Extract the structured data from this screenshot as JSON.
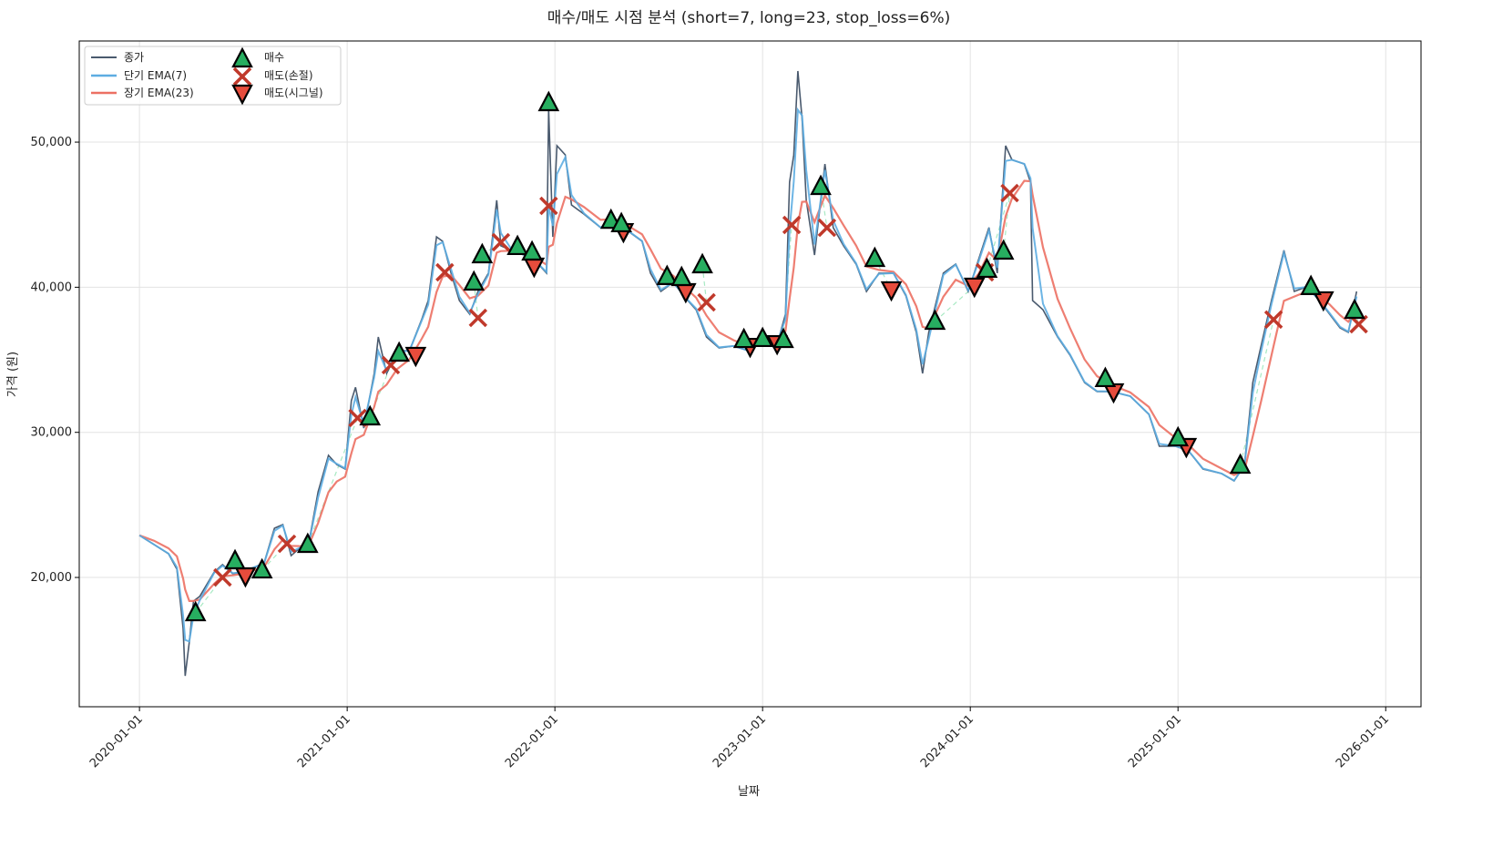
{
  "chart_data": {
    "type": "line",
    "title": "매수/매도 시점 분석 (short=7, long=23, stop_loss=6%)",
    "xlabel": "날짜",
    "ylabel": "가격 (원)",
    "params": {
      "short": 7,
      "long": 23,
      "stop_loss_pct": 6
    },
    "xlim": [
      2019.71,
      2026.17
    ],
    "ylim": [
      11090,
      56970
    ],
    "grid": true,
    "legend_placement": "top-left",
    "x_ticks": [
      {
        "value": 2020,
        "label": "2020-01-01"
      },
      {
        "value": 2021,
        "label": "2021-01-01"
      },
      {
        "value": 2022,
        "label": "2022-01-01"
      },
      {
        "value": 2023,
        "label": "2023-01-01"
      },
      {
        "value": 2024,
        "label": "2024-01-01"
      },
      {
        "value": 2025,
        "label": "2025-01-01"
      },
      {
        "value": 2026,
        "label": "2026-01-01"
      }
    ],
    "y_ticks": [
      {
        "value": 20000,
        "label": "20,000"
      },
      {
        "value": 30000,
        "label": "30,000"
      },
      {
        "value": 40000,
        "label": "40,000"
      },
      {
        "value": 50000,
        "label": "50,000"
      }
    ],
    "legend": {
      "close": "종가",
      "short_ema": "단기 EMA(7)",
      "long_ema": "장기 EMA(23)",
      "buy": "매수",
      "sell_stop": "매도(손절)",
      "sell_signal": "매도(시그널)"
    },
    "colors": {
      "close": "#4a5a6e",
      "short_ema": "#5dade2",
      "long_ema": "#ec7063",
      "buy": "#27ae60",
      "sell_stop": "#c0392b",
      "sell_signal": "#e74c3c",
      "trade_line": "#82e0aa"
    },
    "close": [
      [
        2020.0,
        22900
      ],
      [
        2020.07,
        22260
      ],
      [
        2020.14,
        21630
      ],
      [
        2020.18,
        20570
      ],
      [
        2020.21,
        16500
      ],
      [
        2020.22,
        13220
      ],
      [
        2020.24,
        15540
      ],
      [
        2020.26,
        18370
      ],
      [
        2020.29,
        18700
      ],
      [
        2020.36,
        20380
      ],
      [
        2020.4,
        20880
      ],
      [
        2020.45,
        20250
      ],
      [
        2020.49,
        20380
      ],
      [
        2020.56,
        20750
      ],
      [
        2020.6,
        21000
      ],
      [
        2020.65,
        23390
      ],
      [
        2020.69,
        23640
      ],
      [
        2020.73,
        21500
      ],
      [
        2020.78,
        22130
      ],
      [
        2020.82,
        22760
      ],
      [
        2020.86,
        25900
      ],
      [
        2020.91,
        28410
      ],
      [
        2020.95,
        27780
      ],
      [
        2020.99,
        27470
      ],
      [
        2021.02,
        32180
      ],
      [
        2021.04,
        33100
      ],
      [
        2021.08,
        30290
      ],
      [
        2021.13,
        34060
      ],
      [
        2021.15,
        36570
      ],
      [
        2021.19,
        34060
      ],
      [
        2021.24,
        35630
      ],
      [
        2021.3,
        35630
      ],
      [
        2021.36,
        37830
      ],
      [
        2021.39,
        39080
      ],
      [
        2021.43,
        43470
      ],
      [
        2021.46,
        43160
      ],
      [
        2021.5,
        40970
      ],
      [
        2021.54,
        39080
      ],
      [
        2021.59,
        38140
      ],
      [
        2021.63,
        39710
      ],
      [
        2021.68,
        40970
      ],
      [
        2021.72,
        45990
      ],
      [
        2021.74,
        42850
      ],
      [
        2021.79,
        42540
      ],
      [
        2021.85,
        42220
      ],
      [
        2021.92,
        41590
      ],
      [
        2021.96,
        40970
      ],
      [
        2021.97,
        52260
      ],
      [
        2021.99,
        43470
      ],
      [
        2022.01,
        49750
      ],
      [
        2022.05,
        49120
      ],
      [
        2022.08,
        45670
      ],
      [
        2022.14,
        45040
      ],
      [
        2022.22,
        44110
      ],
      [
        2022.29,
        44730
      ],
      [
        2022.36,
        43790
      ],
      [
        2022.42,
        43160
      ],
      [
        2022.46,
        40970
      ],
      [
        2022.51,
        39710
      ],
      [
        2022.57,
        40340
      ],
      [
        2022.64,
        39080
      ],
      [
        2022.68,
        38450
      ],
      [
        2022.73,
        36570
      ],
      [
        2022.79,
        35820
      ],
      [
        2022.86,
        35950
      ],
      [
        2022.93,
        35630
      ],
      [
        2022.99,
        36570
      ],
      [
        2023.08,
        36570
      ],
      [
        2023.11,
        38140
      ],
      [
        2023.13,
        47240
      ],
      [
        2023.15,
        49120
      ],
      [
        2023.17,
        54900
      ],
      [
        2023.19,
        51630
      ],
      [
        2023.21,
        46000
      ],
      [
        2023.25,
        42220
      ],
      [
        2023.3,
        48490
      ],
      [
        2023.34,
        44110
      ],
      [
        2023.39,
        42850
      ],
      [
        2023.45,
        41590
      ],
      [
        2023.5,
        39710
      ],
      [
        2023.56,
        40970
      ],
      [
        2023.63,
        40970
      ],
      [
        2023.69,
        39400
      ],
      [
        2023.74,
        36890
      ],
      [
        2023.77,
        34060
      ],
      [
        2023.8,
        36890
      ],
      [
        2023.87,
        40970
      ],
      [
        2023.93,
        41590
      ],
      [
        2023.99,
        39710
      ],
      [
        2024.04,
        41910
      ],
      [
        2024.09,
        44110
      ],
      [
        2024.13,
        40970
      ],
      [
        2024.17,
        49750
      ],
      [
        2024.2,
        48800
      ],
      [
        2024.26,
        48490
      ],
      [
        2024.29,
        47240
      ],
      [
        2024.3,
        39080
      ],
      [
        2024.35,
        38450
      ],
      [
        2024.42,
        36570
      ],
      [
        2024.48,
        35320
      ],
      [
        2024.55,
        33430
      ],
      [
        2024.61,
        32810
      ],
      [
        2024.68,
        32810
      ],
      [
        2024.77,
        32490
      ],
      [
        2024.86,
        31240
      ],
      [
        2024.91,
        29040
      ],
      [
        2024.99,
        29040
      ],
      [
        2025.05,
        28730
      ],
      [
        2025.12,
        27470
      ],
      [
        2025.21,
        27160
      ],
      [
        2025.27,
        26650
      ],
      [
        2025.32,
        27780
      ],
      [
        2025.36,
        33430
      ],
      [
        2025.4,
        35950
      ],
      [
        2025.45,
        39080
      ],
      [
        2025.51,
        42540
      ],
      [
        2025.56,
        39710
      ],
      [
        2025.62,
        40030
      ],
      [
        2025.68,
        39080
      ],
      [
        2025.73,
        38140
      ],
      [
        2025.78,
        37200
      ],
      [
        2025.82,
        36890
      ],
      [
        2025.86,
        39710
      ]
    ],
    "buy": [
      [
        2020.27,
        17550
      ],
      [
        2020.46,
        21130
      ],
      [
        2020.59,
        20500
      ],
      [
        2020.81,
        22260
      ],
      [
        2021.11,
        31050
      ],
      [
        2021.25,
        35440
      ],
      [
        2021.61,
        40340
      ],
      [
        2021.65,
        42220
      ],
      [
        2021.82,
        42790
      ],
      [
        2021.89,
        42410
      ],
      [
        2021.97,
        52700
      ],
      [
        2022.27,
        44600
      ],
      [
        2022.32,
        44360
      ],
      [
        2022.54,
        40720
      ],
      [
        2022.61,
        40650
      ],
      [
        2022.71,
        41530
      ],
      [
        2022.91,
        36380
      ],
      [
        2023.0,
        36450
      ],
      [
        2023.1,
        36380
      ],
      [
        2023.28,
        46930
      ],
      [
        2023.54,
        41970
      ],
      [
        2023.83,
        37640
      ],
      [
        2024.08,
        41220
      ],
      [
        2024.16,
        42470
      ],
      [
        2024.65,
        33690
      ],
      [
        2025.0,
        29600
      ],
      [
        2025.3,
        27720
      ],
      [
        2025.64,
        40030
      ],
      [
        2025.85,
        38390
      ]
    ],
    "sell_stop": [
      [
        2020.4,
        20000
      ],
      [
        2020.71,
        22320
      ],
      [
        2021.05,
        30990
      ],
      [
        2021.21,
        34630
      ],
      [
        2021.47,
        41030
      ],
      [
        2021.63,
        37890
      ],
      [
        2021.74,
        43100
      ],
      [
        2021.97,
        45610
      ],
      [
        2022.73,
        38960
      ],
      [
        2023.14,
        44290
      ],
      [
        2023.31,
        44100
      ],
      [
        2024.07,
        41030
      ],
      [
        2024.19,
        46490
      ],
      [
        2025.46,
        37770
      ],
      [
        2025.87,
        37450
      ]
    ],
    "sell_signal": [
      [
        2020.51,
        20130
      ],
      [
        2021.33,
        35320
      ],
      [
        2021.9,
        41470
      ],
      [
        2022.33,
        43850
      ],
      [
        2022.63,
        39710
      ],
      [
        2022.94,
        35940
      ],
      [
        2023.07,
        36130
      ],
      [
        2023.62,
        39840
      ],
      [
        2024.02,
        40090
      ],
      [
        2024.69,
        32810
      ],
      [
        2025.04,
        29040
      ],
      [
        2025.7,
        39150
      ]
    ]
  }
}
